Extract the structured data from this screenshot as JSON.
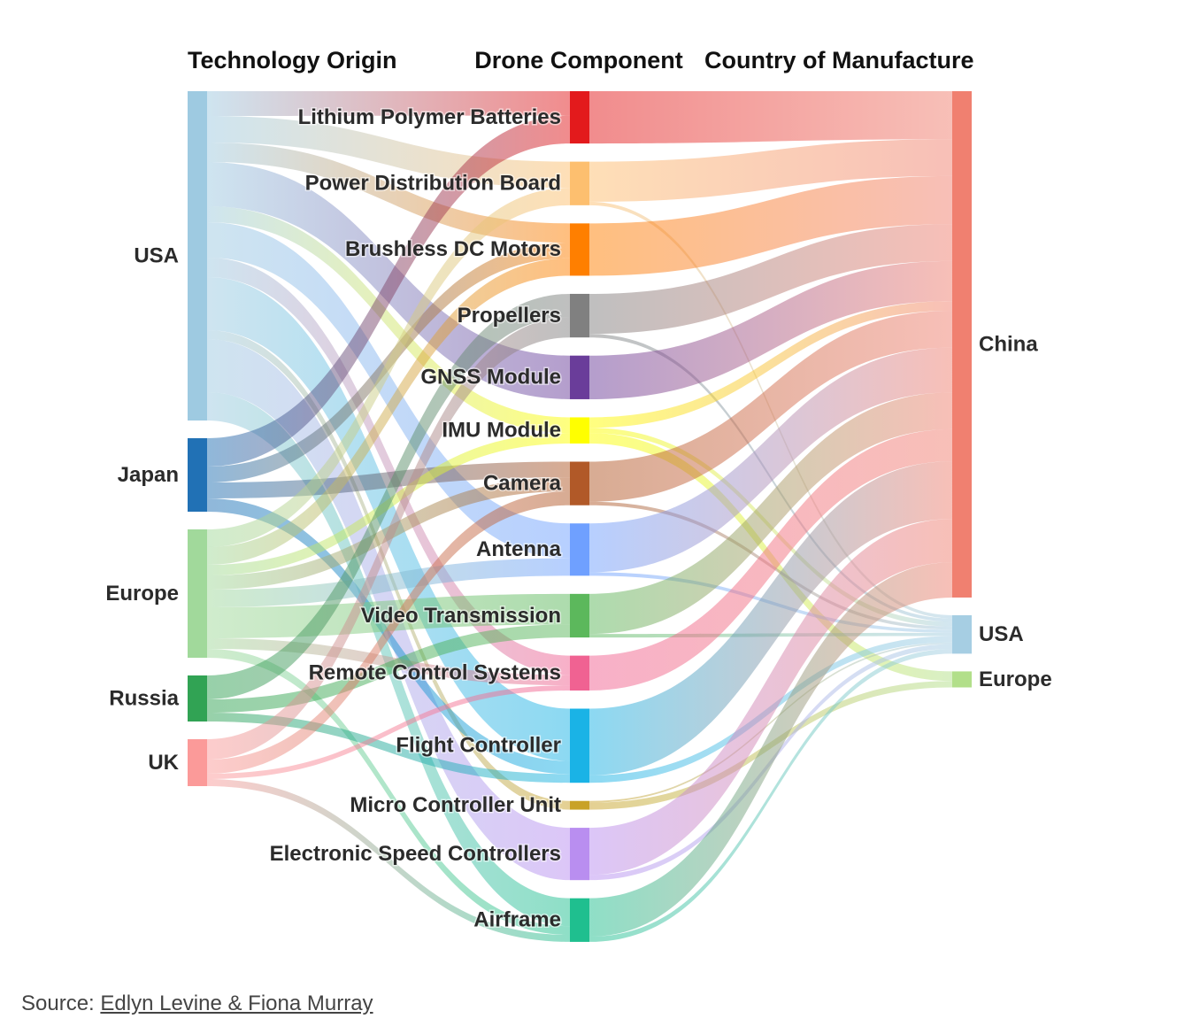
{
  "chart_data": {
    "type": "sankey",
    "columns": [
      {
        "key": "origin",
        "title": "Technology Origin"
      },
      {
        "key": "component",
        "title": "Drone Component"
      },
      {
        "key": "manufacture",
        "title": "Country of Manufacture"
      }
    ],
    "nodes": {
      "origin": [
        {
          "id": "o_usa",
          "label": "USA",
          "color": "#9ecae1"
        },
        {
          "id": "o_japan",
          "label": "Japan",
          "color": "#2171b5"
        },
        {
          "id": "o_europe",
          "label": "Europe",
          "color": "#a1d99b"
        },
        {
          "id": "o_russia",
          "label": "Russia",
          "color": "#31a354"
        },
        {
          "id": "o_uk",
          "label": "UK",
          "color": "#fb9a99"
        }
      ],
      "component": [
        {
          "id": "c_lipo",
          "label": "Lithium Polymer Batteries",
          "color": "#e31a1c"
        },
        {
          "id": "c_pdb",
          "label": "Power Distribution Board",
          "color": "#fdbf6f"
        },
        {
          "id": "c_bldc",
          "label": "Brushless DC Motors",
          "color": "#ff7f00"
        },
        {
          "id": "c_prop",
          "label": "Propellers",
          "color": "#808080"
        },
        {
          "id": "c_gnss",
          "label": "GNSS Module",
          "color": "#6a3d9a"
        },
        {
          "id": "c_imu",
          "label": "IMU Module",
          "color": "#ffff00"
        },
        {
          "id": "c_cam",
          "label": "Camera",
          "color": "#b15928"
        },
        {
          "id": "c_ant",
          "label": "Antenna",
          "color": "#6fa0ff"
        },
        {
          "id": "c_vid",
          "label": "Video Transmission",
          "color": "#5cb85c"
        },
        {
          "id": "c_rcs",
          "label": "Remote Control Systems",
          "color": "#f06292"
        },
        {
          "id": "c_fc",
          "label": "Flight Controller",
          "color": "#1ab3e6"
        },
        {
          "id": "c_mcu",
          "label": "Micro Controller Unit",
          "color": "#c9a227"
        },
        {
          "id": "c_esc",
          "label": "Electronic Speed Controllers",
          "color": "#b98ef0"
        },
        {
          "id": "c_air",
          "label": "Airframe",
          "color": "#1fbf8f"
        }
      ],
      "manufacture": [
        {
          "id": "m_china",
          "label": "China",
          "color": "#f08070"
        },
        {
          "id": "m_usa",
          "label": "USA",
          "color": "#a6cee3"
        },
        {
          "id": "m_europe",
          "label": "Europe",
          "color": "#b2df8a"
        }
      ]
    },
    "links": [
      {
        "source": "o_usa",
        "target": "c_lipo",
        "value": 28
      },
      {
        "source": "o_usa",
        "target": "c_pdb",
        "value": 30
      },
      {
        "source": "o_usa",
        "target": "c_bldc",
        "value": 22
      },
      {
        "source": "o_usa",
        "target": "c_gnss",
        "value": 50
      },
      {
        "source": "o_usa",
        "target": "c_imu",
        "value": 18
      },
      {
        "source": "o_usa",
        "target": "c_ant",
        "value": 40
      },
      {
        "source": "o_usa",
        "target": "c_rcs",
        "value": 22
      },
      {
        "source": "o_usa",
        "target": "c_fc",
        "value": 60
      },
      {
        "source": "o_usa",
        "target": "c_mcu",
        "value": 10
      },
      {
        "source": "o_usa",
        "target": "c_esc",
        "value": 60
      },
      {
        "source": "o_usa",
        "target": "c_air",
        "value": 32
      },
      {
        "source": "o_japan",
        "target": "c_lipo",
        "value": 32
      },
      {
        "source": "o_japan",
        "target": "c_bldc",
        "value": 18
      },
      {
        "source": "o_japan",
        "target": "c_cam",
        "value": 18
      },
      {
        "source": "o_japan",
        "target": "c_fc",
        "value": 15
      },
      {
        "source": "o_europe",
        "target": "c_pdb",
        "value": 20
      },
      {
        "source": "o_europe",
        "target": "c_bldc",
        "value": 20
      },
      {
        "source": "o_europe",
        "target": "c_imu",
        "value": 12
      },
      {
        "source": "o_europe",
        "target": "c_ant",
        "value": 20
      },
      {
        "source": "o_europe",
        "target": "c_vid",
        "value": 35
      },
      {
        "source": "o_europe",
        "target": "c_cam",
        "value": 16
      },
      {
        "source": "o_europe",
        "target": "c_rcs",
        "value": 12
      },
      {
        "source": "o_europe",
        "target": "c_air",
        "value": 10
      },
      {
        "source": "o_russia",
        "target": "c_prop",
        "value": 27
      },
      {
        "source": "o_russia",
        "target": "c_vid",
        "value": 15
      },
      {
        "source": "o_russia",
        "target": "c_fc",
        "value": 10
      },
      {
        "source": "o_uk",
        "target": "c_prop",
        "value": 23
      },
      {
        "source": "o_uk",
        "target": "c_cam",
        "value": 16
      },
      {
        "source": "o_uk",
        "target": "c_rcs",
        "value": 6
      },
      {
        "source": "o_uk",
        "target": "c_air",
        "value": 8
      },
      {
        "source": "c_lipo",
        "target": "m_china",
        "value": 60
      },
      {
        "source": "c_pdb",
        "target": "m_china",
        "value": 46
      },
      {
        "source": "c_pdb",
        "target": "m_usa",
        "value": 4
      },
      {
        "source": "c_bldc",
        "target": "m_china",
        "value": 60
      },
      {
        "source": "c_prop",
        "target": "m_china",
        "value": 46
      },
      {
        "source": "c_prop",
        "target": "m_usa",
        "value": 4
      },
      {
        "source": "c_gnss",
        "target": "m_china",
        "value": 50
      },
      {
        "source": "c_imu",
        "target": "m_china",
        "value": 12
      },
      {
        "source": "c_imu",
        "target": "m_usa",
        "value": 6
      },
      {
        "source": "c_imu",
        "target": "m_europe",
        "value": 12
      },
      {
        "source": "c_cam",
        "target": "m_china",
        "value": 46
      },
      {
        "source": "c_cam",
        "target": "m_usa",
        "value": 4
      },
      {
        "source": "c_ant",
        "target": "m_china",
        "value": 56
      },
      {
        "source": "c_ant",
        "target": "m_usa",
        "value": 4
      },
      {
        "source": "c_vid",
        "target": "m_china",
        "value": 46
      },
      {
        "source": "c_vid",
        "target": "m_usa",
        "value": 4
      },
      {
        "source": "c_rcs",
        "target": "m_china",
        "value": 40
      },
      {
        "source": "c_fc",
        "target": "m_china",
        "value": 72
      },
      {
        "source": "c_fc",
        "target": "m_usa",
        "value": 8
      },
      {
        "source": "c_mcu",
        "target": "m_usa",
        "value": 2
      },
      {
        "source": "c_mcu",
        "target": "m_europe",
        "value": 8
      },
      {
        "source": "c_esc",
        "target": "m_china",
        "value": 54
      },
      {
        "source": "c_esc",
        "target": "m_usa",
        "value": 6
      },
      {
        "source": "c_air",
        "target": "m_china",
        "value": 44
      },
      {
        "source": "c_air",
        "target": "m_usa",
        "value": 6
      }
    ]
  },
  "source": {
    "prefix": "Source: ",
    "link_text": "Edlyn Levine & Fiona Murray"
  }
}
